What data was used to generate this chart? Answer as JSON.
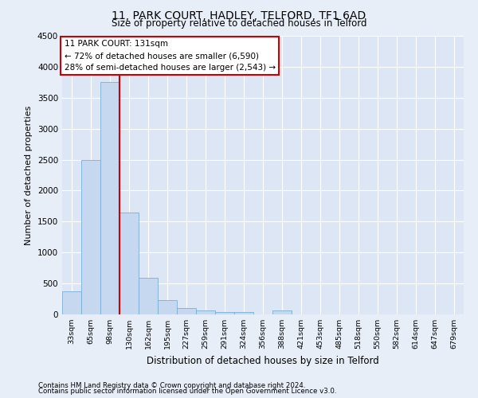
{
  "title": "11, PARK COURT, HADLEY, TELFORD, TF1 6AD",
  "subtitle": "Size of property relative to detached houses in Telford",
  "xlabel": "Distribution of detached houses by size in Telford",
  "ylabel": "Number of detached properties",
  "categories": [
    "33sqm",
    "65sqm",
    "98sqm",
    "130sqm",
    "162sqm",
    "195sqm",
    "227sqm",
    "259sqm",
    "291sqm",
    "324sqm",
    "356sqm",
    "388sqm",
    "421sqm",
    "453sqm",
    "485sqm",
    "518sqm",
    "550sqm",
    "582sqm",
    "614sqm",
    "647sqm",
    "679sqm"
  ],
  "values": [
    370,
    2500,
    3750,
    1640,
    590,
    230,
    100,
    65,
    45,
    40,
    0,
    65,
    0,
    0,
    0,
    0,
    0,
    0,
    0,
    0,
    0
  ],
  "bar_color": "#c5d8f0",
  "bar_edge_color": "#7badd4",
  "vline_color": "#cc0000",
  "vline_x_index": 3,
  "annotation_text": "11 PARK COURT: 131sqm\n← 72% of detached houses are smaller (6,590)\n28% of semi-detached houses are larger (2,543) →",
  "annotation_box_color": "#ffffff",
  "annotation_box_edge": "#cc0000",
  "ylim": [
    0,
    4500
  ],
  "yticks": [
    0,
    500,
    1000,
    1500,
    2000,
    2500,
    3000,
    3500,
    4000,
    4500
  ],
  "background_color": "#dce6f5",
  "grid_color": "#ffffff",
  "fig_background": "#e8eef8",
  "footer_line1": "Contains HM Land Registry data © Crown copyright and database right 2024.",
  "footer_line2": "Contains public sector information licensed under the Open Government Licence v3.0."
}
